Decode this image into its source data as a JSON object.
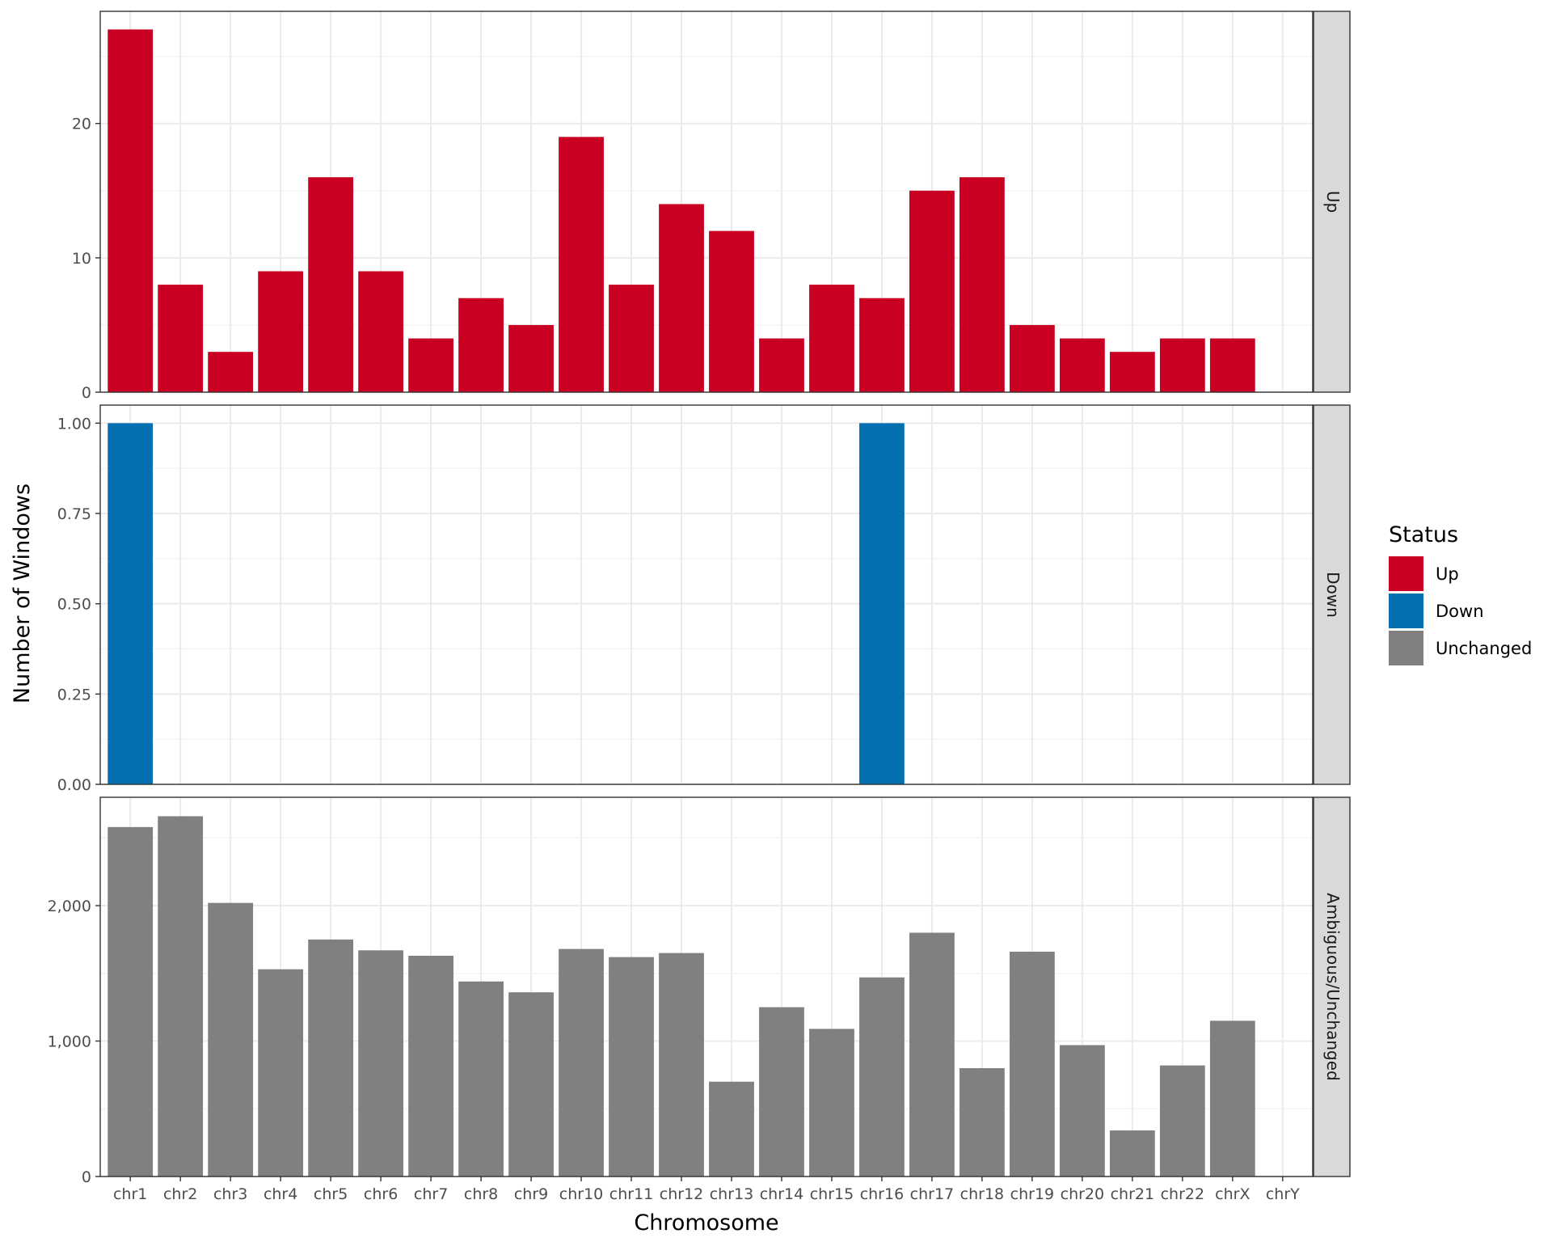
{
  "chart_data": {
    "type": "bar",
    "xlabel": "Chromosome",
    "ylabel": "Number of Windows",
    "categories": [
      "chr1",
      "chr2",
      "chr3",
      "chr4",
      "chr5",
      "chr6",
      "chr7",
      "chr8",
      "chr9",
      "chr10",
      "chr11",
      "chr12",
      "chr13",
      "chr14",
      "chr15",
      "chr16",
      "chr17",
      "chr18",
      "chr19",
      "chr20",
      "chr21",
      "chr22",
      "chrX",
      "chrY"
    ],
    "facets": [
      {
        "strip": "Up",
        "series": "Up",
        "values": [
          27,
          8,
          3,
          9,
          16,
          9,
          4,
          7,
          5,
          19,
          8,
          14,
          12,
          4,
          8,
          7,
          15,
          16,
          5,
          4,
          3,
          4,
          4,
          0
        ],
        "ylim": [
          0,
          28.35
        ],
        "ticks": [
          0,
          10,
          20
        ],
        "tick_labels": [
          "0",
          "10",
          "20"
        ],
        "minor_ticks": [
          5,
          15,
          25
        ]
      },
      {
        "strip": "Down",
        "series": "Down",
        "values": [
          1,
          0,
          0,
          0,
          0,
          0,
          0,
          0,
          0,
          0,
          0,
          0,
          0,
          0,
          0,
          1,
          0,
          0,
          0,
          0,
          0,
          0,
          0,
          0
        ],
        "ylim": [
          0,
          1.05
        ],
        "ticks": [
          0,
          0.25,
          0.5,
          0.75,
          1
        ],
        "tick_labels": [
          "0.00",
          "0.25",
          "0.50",
          "0.75",
          "1.00"
        ],
        "minor_ticks": [
          0.125,
          0.375,
          0.625,
          0.875
        ]
      },
      {
        "strip": "Ambiguous/Unchanged",
        "series": "Unchanged",
        "values": [
          2580,
          2660,
          2020,
          1530,
          1750,
          1670,
          1630,
          1440,
          1360,
          1680,
          1620,
          1650,
          700,
          1250,
          1090,
          1470,
          1800,
          800,
          1660,
          970,
          340,
          820,
          1150,
          0
        ],
        "ylim": [
          0,
          2800
        ],
        "ticks": [
          0,
          1000,
          2000
        ],
        "tick_labels": [
          "0",
          "1,000",
          "2,000"
        ],
        "minor_ticks": [
          500,
          1500,
          2500
        ]
      }
    ],
    "legend": {
      "title": "Status",
      "position": "right",
      "items": [
        {
          "label": "Up",
          "color": "#c90021"
        },
        {
          "label": "Down",
          "color": "#0570b0"
        },
        {
          "label": "Unchanged",
          "color": "#808080"
        }
      ]
    },
    "grid": true
  }
}
